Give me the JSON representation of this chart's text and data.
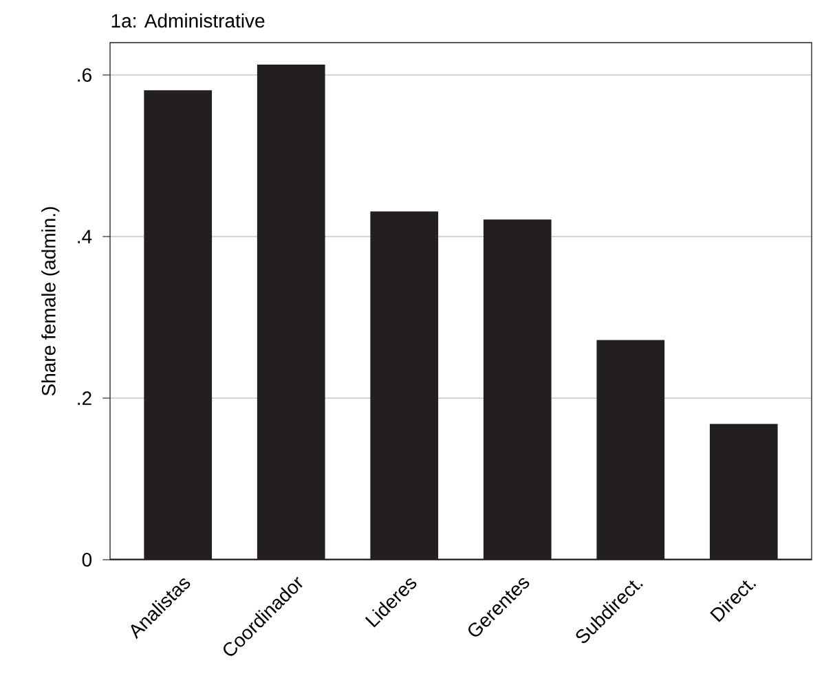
{
  "chart_data": {
    "type": "bar",
    "title": "1a: Administrative",
    "ylabel": "Share female (admin.)",
    "categories": [
      "Analistas",
      "Coordinador",
      "Lideres",
      "Gerentes",
      "Subdirect.",
      "Direct."
    ],
    "values": [
      0.581,
      0.613,
      0.431,
      0.421,
      0.272,
      0.168
    ],
    "color": "#231f20",
    "ylim": [
      0,
      0.64
    ],
    "yticks": [
      0,
      {
        "value": 0.2,
        "label": ".2"
      },
      {
        "value": 0.4,
        "label": ".4"
      },
      {
        "value": 0.6,
        "label": ".6"
      }
    ],
    "grid": "y"
  }
}
